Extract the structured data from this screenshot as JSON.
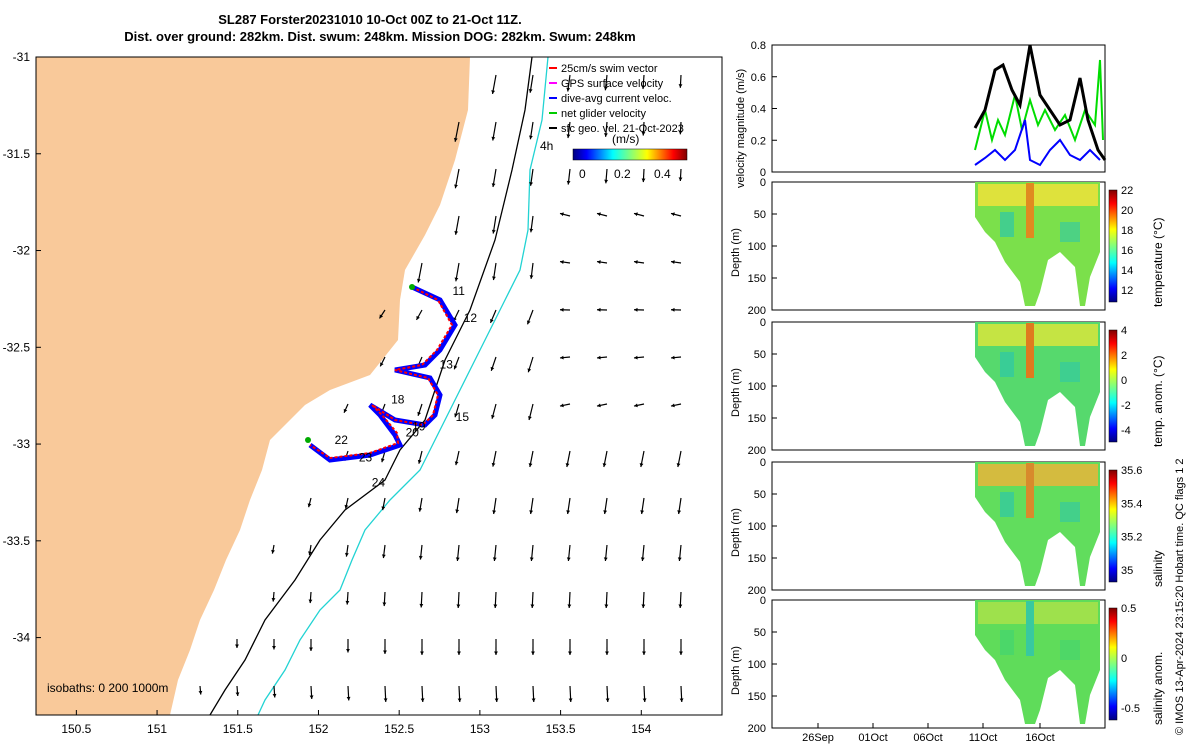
{
  "title_line1": "SL287 Forster20231010 10-Oct 00Z to 21-Oct 11Z.",
  "title_line2": "Dist. over ground: 282km. Dist. swum: 248km. Mission DOG: 282km. Swum: 248km",
  "credit": "© IMOS 13-Apr-2024 23:15:20 Hobart time. QC flags 1  2",
  "colors": {
    "land": "#f9c99a",
    "isobath_200": "#000000",
    "isobath_1000": "#22d3d3",
    "swim": "#ff0000",
    "gps": "#ff00ff",
    "dive": "#0000ff",
    "net": "#00cc00",
    "geo": "#000000"
  },
  "chart_data": [
    {
      "type": "map",
      "xlim": [
        150.25,
        154.5
      ],
      "ylim": [
        -34.4,
        -31.0
      ],
      "x_ticks": [
        "150.5",
        "151",
        "151.5",
        "152",
        "152.5",
        "153",
        "153.5",
        "154"
      ],
      "x_tick_values": [
        150.5,
        151,
        151.5,
        152,
        152.5,
        153,
        153.5,
        154
      ],
      "y_ticks": [
        "-31",
        "-31.5",
        "-32",
        "-32.5",
        "-33",
        "-33.5",
        "-34"
      ],
      "y_tick_values": [
        -31,
        -31.5,
        -32,
        -32.5,
        -33,
        -33.5,
        -34
      ],
      "legend": [
        {
          "label": "25cm/s swim vector",
          "color": "#ff0000"
        },
        {
          "label": "GPS surface velocity",
          "color": "#ff00ff"
        },
        {
          "label": "dive-avg current veloc.",
          "color": "#0000ff"
        },
        {
          "label": "net glider velocity",
          "color": "#00cc00"
        },
        {
          "label": "sfc geo. vel. 21-Oct-2023",
          "color": "#000000"
        }
      ],
      "colorbar_label": "(m/s)",
      "colorbar_ticks": [
        "0",
        "0.2",
        "0.4"
      ],
      "colorbar_extra_label": "4h",
      "isobaths_label": "isobaths: 0   200  1000m",
      "day_labels": [
        {
          "label": "11",
          "lon": 152.83,
          "lat": -32.23
        },
        {
          "label": "12",
          "lon": 152.9,
          "lat": -32.37
        },
        {
          "label": "13",
          "lon": 152.75,
          "lat": -32.61
        },
        {
          "label": "15",
          "lon": 152.85,
          "lat": -32.88
        },
        {
          "label": "18",
          "lon": 152.45,
          "lat": -32.79
        },
        {
          "label": "19",
          "lon": 152.58,
          "lat": -32.93
        },
        {
          "label": "20",
          "lon": 152.54,
          "lat": -32.96
        },
        {
          "label": "22",
          "lon": 152.1,
          "lat": -33.0
        },
        {
          "label": "23",
          "lon": 152.25,
          "lat": -33.09
        },
        {
          "label": "24",
          "lon": 152.33,
          "lat": -33.22
        }
      ]
    },
    {
      "type": "line",
      "ylabel": "velocity magnitude (m/s)",
      "ylim": [
        0,
        0.8
      ],
      "y_ticks": [
        "0",
        "0.2",
        "0.4",
        "0.6",
        "0.8"
      ]
    },
    {
      "type": "heatmap",
      "ylabel": "Depth (m)",
      "colorbar_label": "temperature (°C)",
      "colorbar_ticks": [
        "12",
        "14",
        "16",
        "18",
        "20",
        "22"
      ],
      "y_ticks": [
        "0",
        "50",
        "100",
        "150",
        "200"
      ]
    },
    {
      "type": "heatmap",
      "ylabel": "Depth (m)",
      "colorbar_label": "temp. anom. (°C)",
      "colorbar_ticks": [
        "-4",
        "-2",
        "0",
        "2",
        "4"
      ],
      "y_ticks": [
        "0",
        "50",
        "100",
        "150",
        "200"
      ]
    },
    {
      "type": "heatmap",
      "ylabel": "Depth (m)",
      "colorbar_label": "salinity",
      "colorbar_ticks": [
        "35",
        "35.2",
        "35.4",
        "35.6"
      ],
      "y_ticks": [
        "0",
        "50",
        "100",
        "150",
        "200"
      ]
    },
    {
      "type": "heatmap",
      "ylabel": "Depth (m)",
      "colorbar_label": "salinity anom.",
      "colorbar_ticks": [
        "-0.5",
        "0",
        "0.5"
      ],
      "y_ticks": [
        "0",
        "50",
        "100",
        "150",
        "200"
      ],
      "x_ticks": [
        "26Sep",
        "01Oct",
        "06Oct",
        "11Oct",
        "16Oct"
      ]
    }
  ]
}
